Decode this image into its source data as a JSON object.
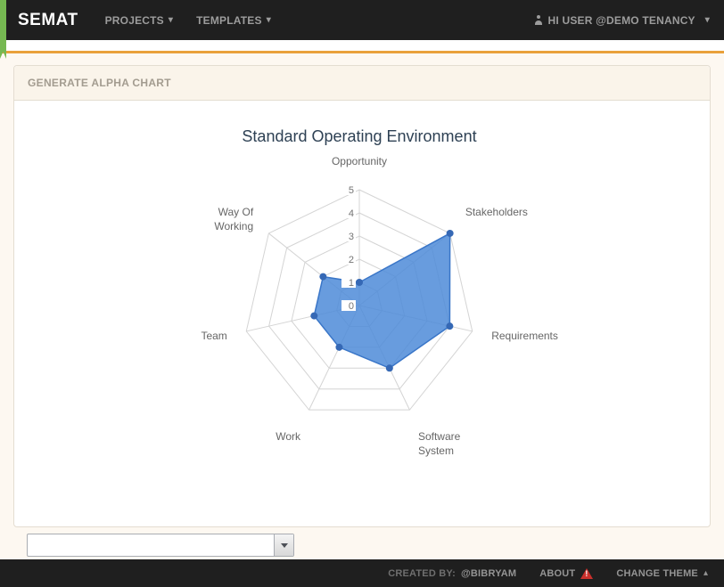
{
  "navbar": {
    "brand": "SEMAT",
    "items": [
      {
        "label": "PROJECTS"
      },
      {
        "label": "TEMPLATES"
      }
    ],
    "user_menu_label": "HI USER @DEMO TENANCY"
  },
  "panel": {
    "title": "GENERATE ALPHA CHART"
  },
  "chart_data": {
    "type": "radar",
    "title": "Standard Operating Environment",
    "categories": [
      "Opportunity",
      "Stakeholders",
      "Requirements",
      "Software System",
      "Work",
      "Team",
      "Way Of Working"
    ],
    "values": [
      1,
      5,
      4,
      3,
      2,
      2,
      2
    ],
    "scale": {
      "min": 0,
      "max": 5,
      "step": 1
    },
    "grid": true,
    "legend": "none",
    "colors": {
      "fill": "#4d8bd8",
      "stroke": "#3a76c8",
      "point": "#3568b5",
      "grid": "#d4d4d4",
      "title": "#2e4154",
      "axis_label": "#666666",
      "tick": "#737373",
      "tick_backdrop": "#ffffff"
    }
  },
  "alpha_select": {
    "value": ""
  },
  "footer": {
    "created_by_label": "CREATED BY:",
    "created_by_value": "@BIBRYAM",
    "about": "ABOUT",
    "change_theme": "CHANGE THEME"
  },
  "icons": {
    "caret_down": "▾",
    "caret_up": "▴"
  }
}
